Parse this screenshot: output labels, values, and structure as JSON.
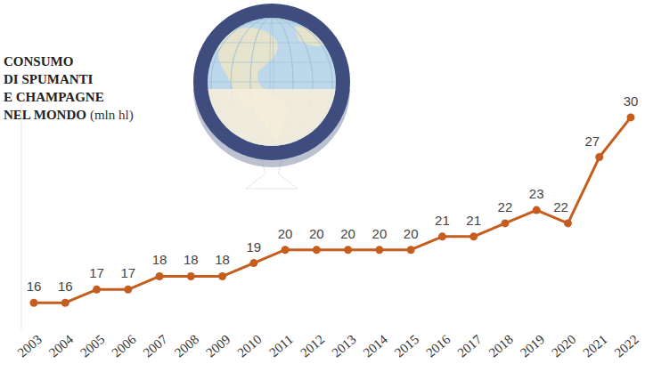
{
  "chart_data": {
    "type": "line",
    "title": "CONSUMO DI SPUMANTI E CHAMPAGNE NEL MONDO",
    "subtitle": "(mln hl)",
    "categories": [
      "2003",
      "2004",
      "2005",
      "2006",
      "2007",
      "2008",
      "2009",
      "2010",
      "2011",
      "2012",
      "2013",
      "2014",
      "2015",
      "2016",
      "2017",
      "2018",
      "2019",
      "2020",
      "2021",
      "2022"
    ],
    "values": [
      16,
      16,
      17,
      17,
      18,
      18,
      18,
      19,
      20,
      20,
      20,
      20,
      20,
      21,
      21,
      22,
      23,
      22,
      27,
      30
    ],
    "color": "#c55d1f",
    "ylim": [
      14,
      31
    ],
    "grid": false,
    "data_labels": true,
    "tick_labels": "x",
    "marker": "circle"
  }
}
